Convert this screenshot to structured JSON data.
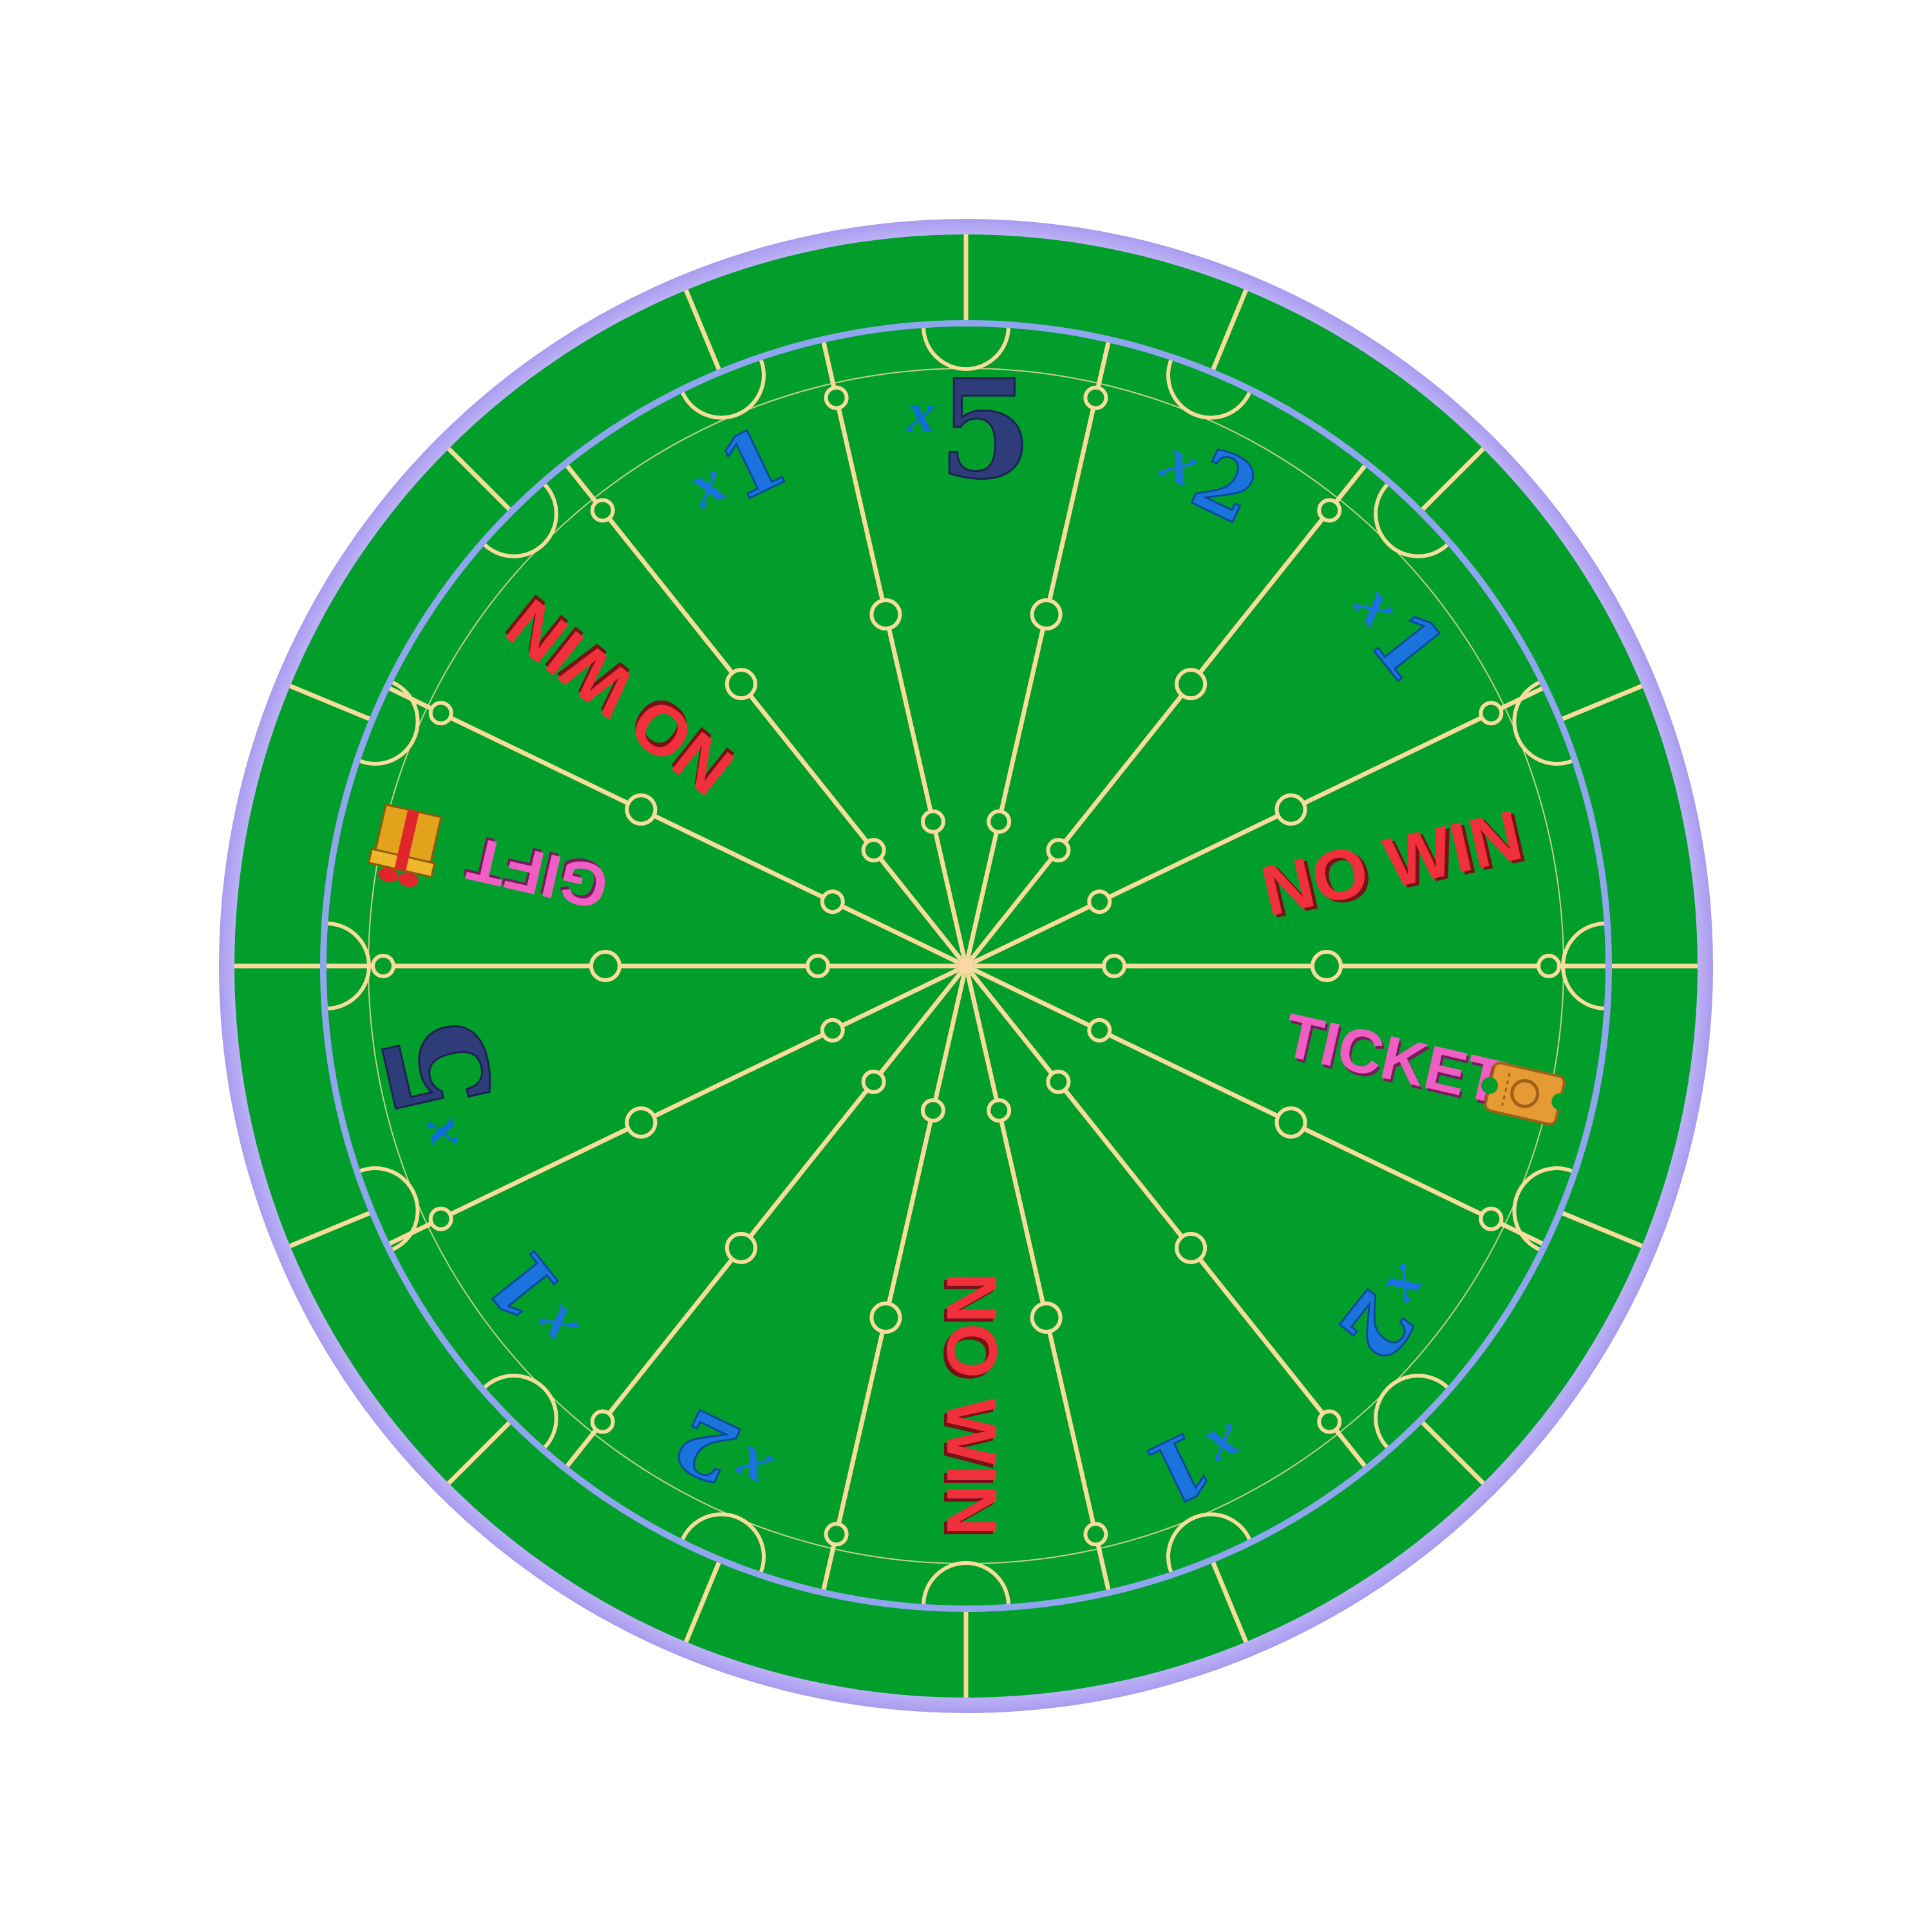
{
  "wheel": {
    "colors": {
      "background": "#ffffff",
      "felt": "#029e2c",
      "rim_outer": "#b6a8f2",
      "rim_inner": "#8fa6ee",
      "lines": "#f7dc9a",
      "hub": "#fbd9a6"
    },
    "outer_band_segments": 16,
    "segments": [
      {
        "text": "x5",
        "kind": "multiplier",
        "x": "x",
        "n": "5",
        "color": "#2e3d7a",
        "accent": "#0e6ed6",
        "big": true
      },
      {
        "text": "x2",
        "kind": "multiplier",
        "x": "x",
        "n": "2",
        "color": "#1b73dd",
        "accent": "#1b73dd"
      },
      {
        "text": "x1",
        "kind": "multiplier",
        "x": "x",
        "n": "1",
        "color": "#1b73dd",
        "accent": "#1b73dd"
      },
      {
        "text": "NO WIN",
        "kind": "text",
        "color": "#f0303a",
        "shadow": "#7a1018"
      },
      {
        "text": "TICKET",
        "kind": "prize",
        "icon": "ticket-icon",
        "color": "#ef5fc3",
        "shadow": "#7a1a5e"
      },
      {
        "text": "x2",
        "kind": "multiplier",
        "x": "x",
        "n": "2",
        "color": "#1b73dd",
        "accent": "#1b73dd"
      },
      {
        "text": "x1",
        "kind": "multiplier",
        "x": "x",
        "n": "1",
        "color": "#1b73dd",
        "accent": "#1b73dd"
      },
      {
        "text": "NO WIN",
        "kind": "text",
        "color": "#f0303a",
        "shadow": "#7a1018"
      },
      {
        "text": "x2",
        "kind": "multiplier",
        "x": "x",
        "n": "2",
        "color": "#1b73dd",
        "accent": "#1b73dd"
      },
      {
        "text": "x1",
        "kind": "multiplier",
        "x": "x",
        "n": "1",
        "color": "#1b73dd",
        "accent": "#1b73dd"
      },
      {
        "text": "x5",
        "kind": "multiplier",
        "x": "x",
        "n": "5",
        "color": "#2e3d7a",
        "accent": "#0e6ed6",
        "big": true
      },
      {
        "text": "GIFT",
        "kind": "prize",
        "icon": "gift-icon",
        "color": "#ef5fc3",
        "shadow": "#7a1a5e"
      },
      {
        "text": "NO WIN",
        "kind": "text",
        "color": "#f0303a",
        "shadow": "#7a1018"
      },
      {
        "text": "x1",
        "kind": "multiplier",
        "x": "x",
        "n": "1",
        "color": "#1b73dd",
        "accent": "#1b73dd"
      }
    ]
  }
}
